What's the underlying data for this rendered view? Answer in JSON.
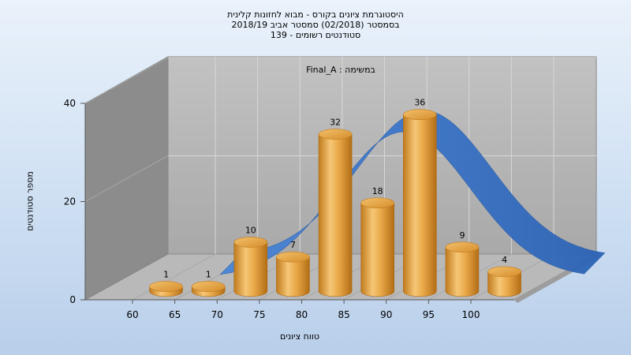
{
  "chart_data": {
    "type": "bar",
    "title": [
      "היסטוגרמת ציונים בקורס - מבוא לחזונות קלינית",
      "בסמסטר  (02/2018)  סמסטר אביב 2018/19",
      "סטודנטים רשומים - 139"
    ],
    "annotation": "Final_A : במשימה",
    "xlabel": "טווח ציונים",
    "ylabel": "מספר סטודנטים",
    "x_ticks": [
      "60",
      "65",
      "70",
      "75",
      "80",
      "85",
      "90",
      "95",
      "100"
    ],
    "y_ticks": [
      "0",
      "20",
      "40"
    ],
    "ylim": [
      0,
      40
    ],
    "bars": [
      {
        "x": 62.5,
        "value": 1
      },
      {
        "x": 67.5,
        "value": 1
      },
      {
        "x": 72.5,
        "value": 10
      },
      {
        "x": 77.5,
        "value": 7
      },
      {
        "x": 82.5,
        "value": 32
      },
      {
        "x": 87.5,
        "value": 18
      },
      {
        "x": 92.5,
        "value": 36
      },
      {
        "x": 97.5,
        "value": 9
      },
      {
        "x": 102.5,
        "value": 4
      }
    ],
    "curve_type": "normal-distribution ribbon",
    "colors": {
      "bar": "#e8a33c",
      "curve": "#3572c6",
      "back_wall": "#b3b3b3",
      "side_wall": "#8a8a8a",
      "floor": "#b8b8b8"
    },
    "grid": true
  }
}
